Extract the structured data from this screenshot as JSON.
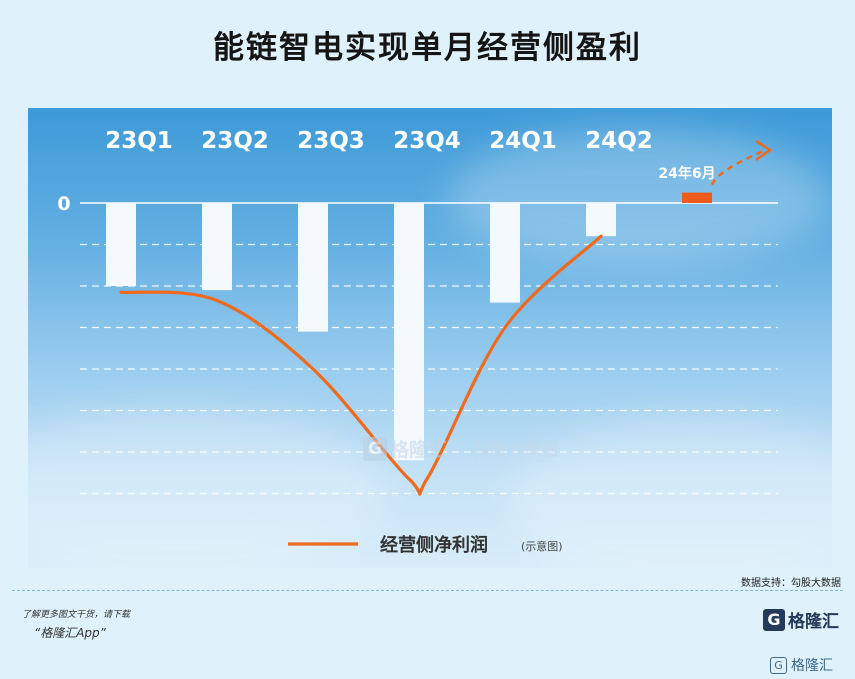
{
  "title": "能链智电实现单月经营侧盈利",
  "chart_data": {
    "type": "bar",
    "categories": [
      "23Q1",
      "23Q2",
      "23Q3",
      "23Q4",
      "24Q1",
      "24Q2",
      "24年6月"
    ],
    "series": [
      {
        "values": [
          -2.0,
          -2.1,
          -3.1,
          -6.2,
          -2.4,
          -0.8,
          0.25
        ]
      }
    ],
    "ylim": [
      -7,
      0.6
    ],
    "yticks": [
      "0"
    ],
    "grid": true,
    "bar_colors": {
      "negative": "#f4f9fd",
      "positive": "#ee5b1c"
    },
    "curve": {
      "name": "经营侧净利润",
      "note": "(示意图)",
      "color": "#ee6a1c",
      "x": [
        0.0,
        1.0,
        2.0,
        3.0,
        3.2,
        4.0,
        5.0
      ],
      "values": [
        -2.15,
        -2.35,
        -4.0,
        -6.65,
        -6.6,
        -3.0,
        -0.8
      ]
    },
    "highlight_label": "24年6月"
  },
  "source": "数据支持：勾股大数据",
  "footer": {
    "note": "了解更多图文干货，请下载",
    "app": "“格隆汇App”"
  },
  "brand": {
    "mark": "G",
    "name": "格隆汇"
  },
  "watermark": {
    "name": "格隆汇",
    "name2": "勾股大数据",
    "url": "www.gogudata.com"
  },
  "corner_brand": {
    "mark": "G",
    "name": "格隆汇"
  }
}
